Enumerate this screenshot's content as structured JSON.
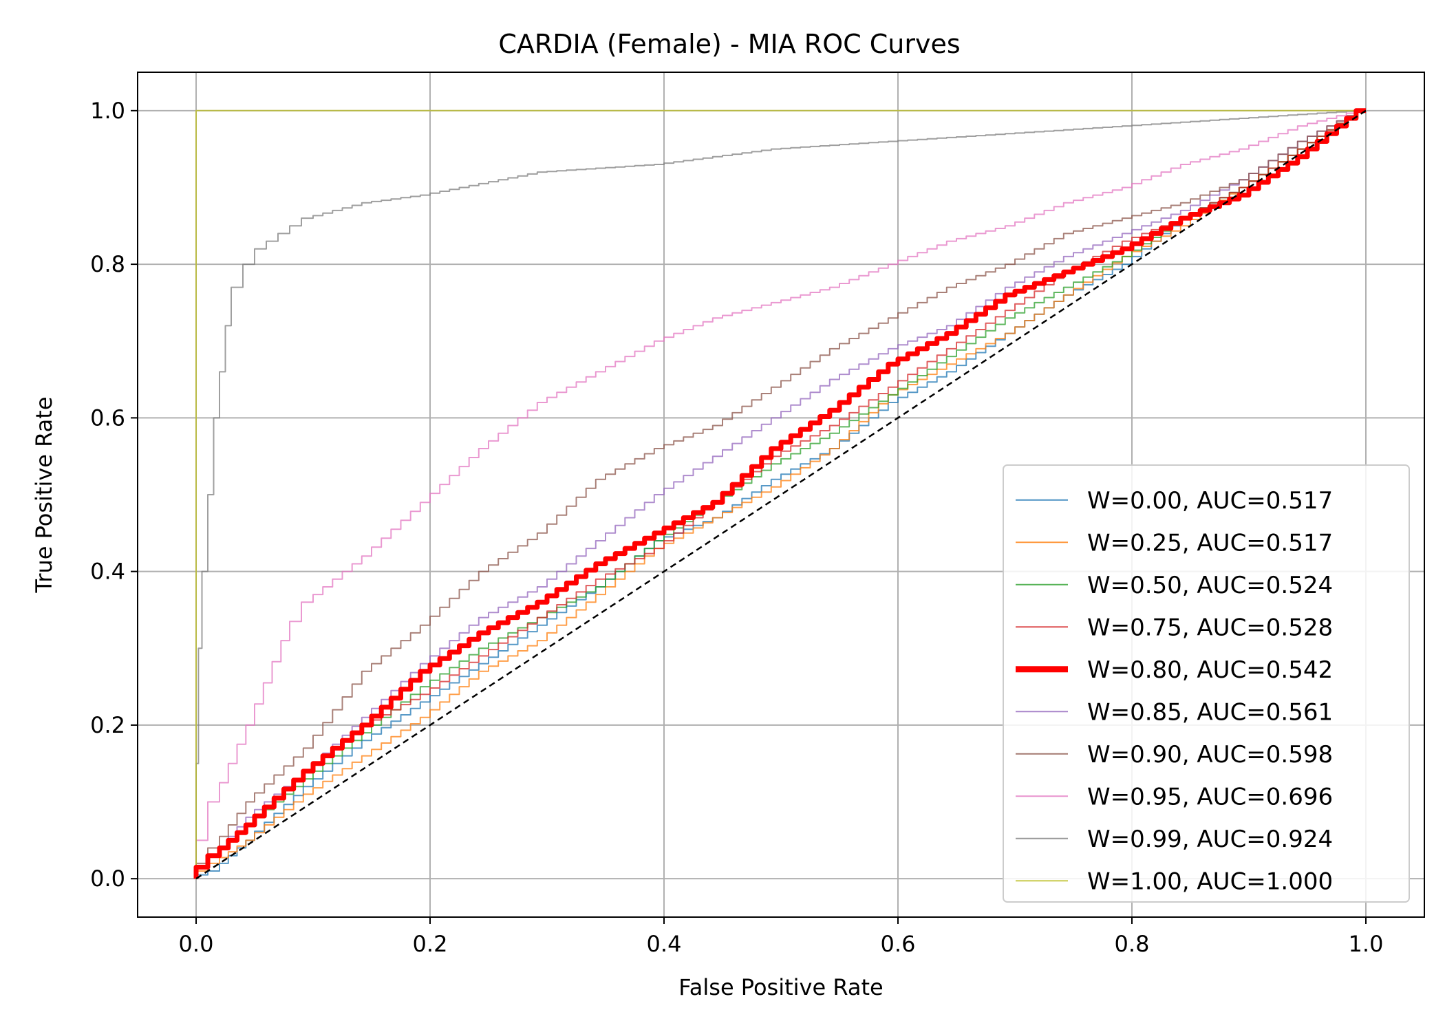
{
  "chart_data": {
    "type": "line",
    "title": "CARDIA (Female) - MIA ROC Curves",
    "xlabel": "False Positive Rate",
    "ylabel": "True Positive Rate",
    "xlim": [
      -0.05,
      1.05
    ],
    "ylim": [
      -0.05,
      1.05
    ],
    "xticks": [
      0.0,
      0.2,
      0.4,
      0.6,
      0.8,
      1.0
    ],
    "yticks": [
      0.0,
      0.2,
      0.4,
      0.6,
      0.8,
      1.0
    ],
    "xtick_labels": [
      "0.0",
      "0.2",
      "0.4",
      "0.6",
      "0.8",
      "1.0"
    ],
    "ytick_labels": [
      "0.0",
      "0.2",
      "0.4",
      "0.6",
      "0.8",
      "1.0"
    ],
    "grid": true,
    "legend_position": "lower-right",
    "diagonal": {
      "x": [
        0,
        1
      ],
      "y": [
        0,
        1
      ],
      "color": "#000000",
      "style": "dashed"
    },
    "series": [
      {
        "name": "W=0.00, AUC=0.517",
        "color": "#1f77b4",
        "width": 1.5,
        "x": [
          0,
          0.02,
          0.05,
          0.1,
          0.15,
          0.2,
          0.25,
          0.3,
          0.35,
          0.4,
          0.45,
          0.5,
          0.55,
          0.6,
          0.65,
          0.7,
          0.75,
          0.8,
          0.85,
          0.9,
          0.95,
          1.0
        ],
        "y": [
          0,
          0.01,
          0.05,
          0.12,
          0.18,
          0.23,
          0.28,
          0.33,
          0.38,
          0.44,
          0.47,
          0.52,
          0.56,
          0.62,
          0.66,
          0.71,
          0.76,
          0.8,
          0.86,
          0.9,
          0.95,
          1.0
        ]
      },
      {
        "name": "W=0.25, AUC=0.517",
        "color": "#ff7f0e",
        "width": 1.5,
        "x": [
          0,
          0.02,
          0.05,
          0.1,
          0.15,
          0.2,
          0.25,
          0.3,
          0.35,
          0.4,
          0.45,
          0.5,
          0.55,
          0.6,
          0.65,
          0.7,
          0.75,
          0.8,
          0.85,
          0.9,
          0.95,
          1.0
        ],
        "y": [
          0,
          0.02,
          0.05,
          0.11,
          0.16,
          0.21,
          0.27,
          0.31,
          0.37,
          0.43,
          0.47,
          0.51,
          0.56,
          0.63,
          0.67,
          0.71,
          0.76,
          0.81,
          0.85,
          0.9,
          0.95,
          1.0
        ]
      },
      {
        "name": "W=0.50, AUC=0.524",
        "color": "#2ca02c",
        "width": 1.5,
        "x": [
          0,
          0.02,
          0.05,
          0.1,
          0.15,
          0.2,
          0.25,
          0.3,
          0.35,
          0.4,
          0.45,
          0.5,
          0.55,
          0.6,
          0.65,
          0.7,
          0.75,
          0.8,
          0.85,
          0.9,
          0.95,
          1.0
        ],
        "y": [
          0,
          0.03,
          0.07,
          0.13,
          0.19,
          0.25,
          0.3,
          0.34,
          0.38,
          0.44,
          0.49,
          0.54,
          0.58,
          0.63,
          0.68,
          0.73,
          0.77,
          0.81,
          0.86,
          0.9,
          0.95,
          1.0
        ]
      },
      {
        "name": "W=0.75, AUC=0.528",
        "color": "#d62728",
        "width": 1.5,
        "x": [
          0,
          0.02,
          0.05,
          0.1,
          0.15,
          0.2,
          0.25,
          0.3,
          0.35,
          0.4,
          0.45,
          0.5,
          0.55,
          0.6,
          0.65,
          0.7,
          0.75,
          0.8,
          0.85,
          0.9,
          0.95,
          1.0
        ],
        "y": [
          0,
          0.03,
          0.07,
          0.14,
          0.2,
          0.24,
          0.29,
          0.34,
          0.39,
          0.43,
          0.49,
          0.55,
          0.59,
          0.64,
          0.69,
          0.74,
          0.79,
          0.83,
          0.86,
          0.9,
          0.95,
          1.0
        ]
      },
      {
        "name": "W=0.80, AUC=0.542",
        "color": "#ff0000",
        "width": 7,
        "x": [
          0,
          0.02,
          0.05,
          0.1,
          0.15,
          0.2,
          0.25,
          0.3,
          0.35,
          0.4,
          0.45,
          0.5,
          0.55,
          0.6,
          0.65,
          0.7,
          0.75,
          0.8,
          0.85,
          0.9,
          0.95,
          1.0
        ],
        "y": [
          0,
          0.03,
          0.07,
          0.14,
          0.2,
          0.27,
          0.32,
          0.36,
          0.41,
          0.45,
          0.49,
          0.56,
          0.61,
          0.67,
          0.71,
          0.76,
          0.79,
          0.82,
          0.86,
          0.89,
          0.94,
          1.0
        ]
      },
      {
        "name": "W=0.85, AUC=0.561",
        "color": "#9467bd",
        "width": 1.5,
        "x": [
          0,
          0.02,
          0.05,
          0.1,
          0.15,
          0.2,
          0.25,
          0.3,
          0.35,
          0.4,
          0.45,
          0.5,
          0.55,
          0.6,
          0.65,
          0.7,
          0.75,
          0.8,
          0.85,
          0.9,
          0.95,
          1.0
        ],
        "y": [
          0,
          0.03,
          0.08,
          0.14,
          0.21,
          0.28,
          0.34,
          0.38,
          0.44,
          0.5,
          0.55,
          0.6,
          0.65,
          0.69,
          0.72,
          0.77,
          0.81,
          0.84,
          0.87,
          0.91,
          0.96,
          1.0
        ]
      },
      {
        "name": "W=0.90, AUC=0.598",
        "color": "#8c564b",
        "width": 1.5,
        "x": [
          0,
          0.02,
          0.05,
          0.1,
          0.15,
          0.2,
          0.25,
          0.3,
          0.35,
          0.4,
          0.45,
          0.5,
          0.55,
          0.6,
          0.65,
          0.7,
          0.75,
          0.8,
          0.85,
          0.9,
          0.95,
          1.0
        ],
        "y": [
          0,
          0.04,
          0.1,
          0.17,
          0.27,
          0.33,
          0.4,
          0.45,
          0.52,
          0.56,
          0.59,
          0.64,
          0.69,
          0.73,
          0.77,
          0.8,
          0.84,
          0.86,
          0.88,
          0.91,
          0.96,
          1.0
        ]
      },
      {
        "name": "W=0.95, AUC=0.696",
        "color": "#e377c2",
        "width": 1.5,
        "x": [
          0,
          0.01,
          0.02,
          0.05,
          0.08,
          0.1,
          0.15,
          0.2,
          0.25,
          0.3,
          0.35,
          0.4,
          0.45,
          0.5,
          0.55,
          0.6,
          0.65,
          0.7,
          0.75,
          0.8,
          0.85,
          0.9,
          0.95,
          1.0
        ],
        "y": [
          0,
          0.05,
          0.1,
          0.2,
          0.31,
          0.36,
          0.42,
          0.49,
          0.56,
          0.62,
          0.66,
          0.7,
          0.73,
          0.75,
          0.77,
          0.8,
          0.83,
          0.85,
          0.88,
          0.9,
          0.93,
          0.95,
          0.98,
          1.0
        ]
      },
      {
        "name": "W=0.99, AUC=0.924",
        "color": "#7f7f7f",
        "width": 1.5,
        "x": [
          0,
          0.002,
          0.005,
          0.01,
          0.015,
          0.02,
          0.025,
          0.03,
          0.04,
          0.05,
          0.06,
          0.08,
          0.1,
          0.15,
          0.2,
          0.3,
          0.4,
          0.5,
          0.6,
          0.7,
          0.8,
          0.9,
          1.0
        ],
        "y": [
          0,
          0.15,
          0.3,
          0.4,
          0.5,
          0.6,
          0.66,
          0.72,
          0.77,
          0.8,
          0.82,
          0.84,
          0.86,
          0.88,
          0.89,
          0.92,
          0.93,
          0.95,
          0.96,
          0.97,
          0.98,
          0.99,
          1.0
        ]
      },
      {
        "name": "W=1.00, AUC=1.000",
        "color": "#bcbd22",
        "width": 1.5,
        "x": [
          0,
          0,
          1.0
        ],
        "y": [
          0,
          1.0,
          1.0
        ]
      }
    ]
  }
}
